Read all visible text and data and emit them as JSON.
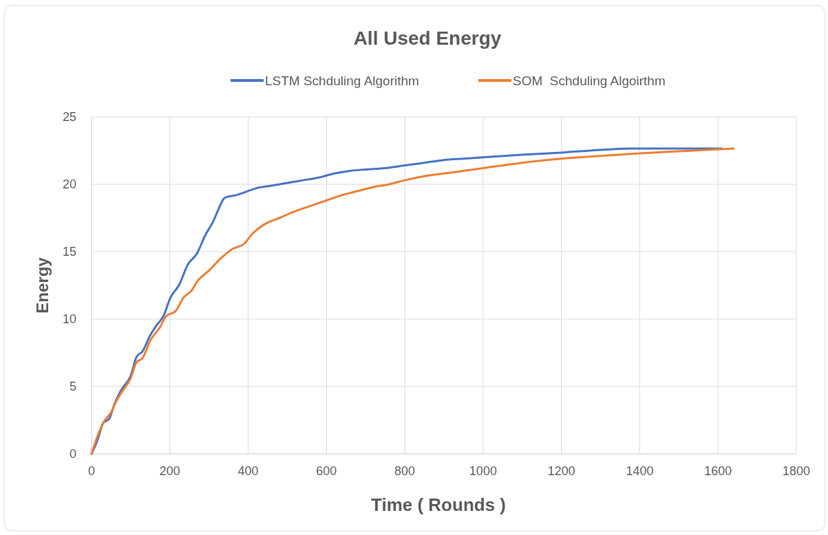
{
  "chart_data": {
    "type": "line",
    "title": "All Used Energy",
    "xlabel": "Time ( Rounds )",
    "ylabel": "Energy",
    "xlim": [
      0,
      1800
    ],
    "xticks": [
      0,
      200,
      400,
      600,
      800,
      1000,
      1200,
      1400,
      1600,
      1800
    ],
    "ylim": [
      0,
      25
    ],
    "yticks": [
      0,
      5,
      10,
      15,
      20,
      25
    ],
    "grid": true,
    "legend": "top",
    "marker": "none",
    "line_style": "solid",
    "series": [
      {
        "name": "LSTM Schduling Algorithm",
        "color": "#4472c4",
        "x": [
          0,
          15,
          30,
          45,
          60,
          75,
          100,
          115,
          130,
          150,
          165,
          185,
          200,
          225,
          245,
          270,
          290,
          310,
          325,
          340,
          370,
          400,
          420,
          460,
          500,
          540,
          580,
          620,
          660,
          700,
          750,
          800,
          850,
          900,
          950,
          1000,
          1100,
          1200,
          1300,
          1380,
          1500,
          1610
        ],
        "values": [
          0,
          1,
          2.3,
          2.6,
          3.8,
          4.7,
          5.8,
          7.2,
          7.6,
          8.8,
          9.5,
          10.3,
          11.5,
          12.6,
          14.0,
          14.9,
          16.2,
          17.2,
          18.2,
          19.0,
          19.2,
          19.5,
          19.7,
          19.9,
          20.1,
          20.3,
          20.5,
          20.8,
          21.0,
          21.1,
          21.2,
          21.4,
          21.6,
          21.8,
          21.9,
          22.0,
          22.2,
          22.35,
          22.55,
          22.65,
          22.65,
          22.65
        ]
      },
      {
        "name": "SOM  Schduling Algoirthm",
        "color": "#ed7d31",
        "x": [
          0,
          15,
          30,
          50,
          65,
          80,
          100,
          115,
          130,
          150,
          175,
          190,
          215,
          235,
          255,
          270,
          300,
          330,
          360,
          390,
          410,
          440,
          480,
          520,
          560,
          600,
          640,
          680,
          720,
          760,
          800,
          850,
          900,
          950,
          1000,
          1100,
          1200,
          1300,
          1400,
          1500,
          1640
        ],
        "values": [
          0,
          1.3,
          2.3,
          3.1,
          4.0,
          4.7,
          5.6,
          6.8,
          7.1,
          8.4,
          9.4,
          10.2,
          10.6,
          11.6,
          12.1,
          12.8,
          13.6,
          14.5,
          15.2,
          15.6,
          16.3,
          17.0,
          17.5,
          18.0,
          18.4,
          18.8,
          19.2,
          19.5,
          19.8,
          20.0,
          20.3,
          20.6,
          20.8,
          21.0,
          21.2,
          21.6,
          21.9,
          22.1,
          22.3,
          22.45,
          22.65
        ]
      }
    ]
  }
}
